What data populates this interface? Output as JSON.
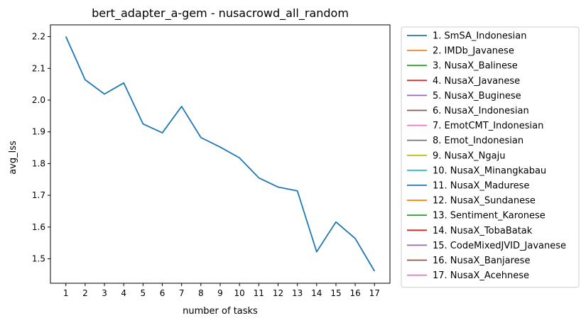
{
  "chart_data": {
    "type": "line",
    "title": "bert_adapter_a-gem - nusacrowd_all_random",
    "xlabel": "number of tasks",
    "ylabel": "avg_lss",
    "x": [
      1,
      2,
      3,
      4,
      5,
      6,
      7,
      8,
      9,
      10,
      11,
      12,
      13,
      14,
      15,
      16,
      17
    ],
    "xticks": [
      "1",
      "2",
      "3",
      "4",
      "5",
      "6",
      "7",
      "8",
      "9",
      "10",
      "11",
      "12",
      "13",
      "14",
      "15",
      "16",
      "17"
    ],
    "yticks": [
      "1.5",
      "1.6",
      "1.7",
      "1.8",
      "1.9",
      "2.0",
      "2.1",
      "2.2"
    ],
    "ytick_values": [
      1.5,
      1.6,
      1.7,
      1.8,
      1.9,
      2.0,
      2.1,
      2.2
    ],
    "xlim": [
      0.2,
      17.8
    ],
    "ylim": [
      1.423,
      2.237
    ],
    "grid": false,
    "legend_position": "outside-right",
    "series": [
      {
        "name": "1. SmSA_Indonesian",
        "color": "#1f77b4",
        "values": [
          2.2,
          2.064,
          2.019,
          2.054,
          1.925,
          1.897,
          1.98,
          1.882,
          1.852,
          1.818,
          1.755,
          1.726,
          1.714,
          1.522,
          1.616,
          1.564,
          1.461
        ]
      }
    ],
    "legend": [
      {
        "label": "1. SmSA_Indonesian",
        "color": "#1f77b4"
      },
      {
        "label": "2. IMDb_Javanese",
        "color": "#ff7f0e"
      },
      {
        "label": "3. NusaX_Balinese",
        "color": "#2ca02c"
      },
      {
        "label": "4. NusaX_Javanese",
        "color": "#d62728"
      },
      {
        "label": "5. NusaX_Buginese",
        "color": "#9467bd"
      },
      {
        "label": "6. NusaX_Indonesian",
        "color": "#8c564b"
      },
      {
        "label": "7. EmotCMT_Indonesian",
        "color": "#e377c2"
      },
      {
        "label": "8. Emot_Indonesian",
        "color": "#7f7f7f"
      },
      {
        "label": "9. NusaX_Ngaju",
        "color": "#bcbd22"
      },
      {
        "label": "10. NusaX_Minangkabau",
        "color": "#17becf"
      },
      {
        "label": "11. NusaX_Madurese",
        "color": "#1f77b4"
      },
      {
        "label": "12. NusaX_Sundanese",
        "color": "#ff7f0e"
      },
      {
        "label": "13. Sentiment_Karonese",
        "color": "#2ca02c"
      },
      {
        "label": "14. NusaX_TobaBatak",
        "color": "#d62728"
      },
      {
        "label": "15. CodeMixedJVID_Javanese",
        "color": "#9467bd"
      },
      {
        "label": "16. NusaX_Banjarese",
        "color": "#8c564b"
      },
      {
        "label": "17. NusaX_Acehnese",
        "color": "#e377c2"
      }
    ]
  }
}
